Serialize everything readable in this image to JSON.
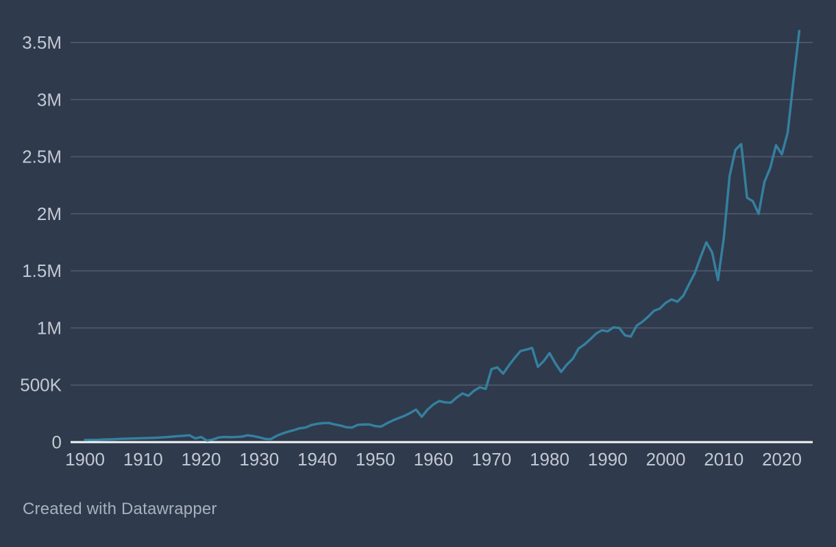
{
  "footer": {
    "attribution": "Created with Datawrapper"
  },
  "colors": {
    "background": "#2f3a4d",
    "line": "#35809e",
    "gridline": "#4c5567",
    "baseline": "#f5f6f7",
    "tick_label": "#c3c9d2",
    "footer_text": "#a9b1bc"
  },
  "chart_data": {
    "type": "line",
    "title": "",
    "xlabel": "",
    "ylabel": "",
    "grid": true,
    "legend": false,
    "xlim": [
      1900,
      2023
    ],
    "ylim": [
      0,
      3500000
    ],
    "x_tick_labels": [
      "1900",
      "1910",
      "1920",
      "1930",
      "1940",
      "1950",
      "1960",
      "1970",
      "1980",
      "1990",
      "2000",
      "2010",
      "2020"
    ],
    "x_tick_values": [
      1900,
      1910,
      1920,
      1930,
      1940,
      1950,
      1960,
      1970,
      1980,
      1990,
      2000,
      2010,
      2020
    ],
    "y_tick_labels": [
      "0",
      "500K",
      "1M",
      "1.5M",
      "2M",
      "2.5M",
      "3M",
      "3.5M"
    ],
    "y_tick_values": [
      0,
      500000,
      1000000,
      1500000,
      2000000,
      2500000,
      3000000,
      3500000
    ],
    "x": [
      1900,
      1901,
      1902,
      1903,
      1904,
      1905,
      1906,
      1907,
      1908,
      1909,
      1910,
      1911,
      1912,
      1913,
      1914,
      1915,
      1916,
      1917,
      1918,
      1919,
      1920,
      1921,
      1922,
      1923,
      1924,
      1925,
      1926,
      1927,
      1928,
      1929,
      1930,
      1931,
      1932,
      1933,
      1934,
      1935,
      1936,
      1937,
      1938,
      1939,
      1940,
      1941,
      1942,
      1943,
      1944,
      1945,
      1946,
      1947,
      1948,
      1949,
      1950,
      1951,
      1952,
      1953,
      1954,
      1955,
      1956,
      1957,
      1958,
      1959,
      1960,
      1961,
      1962,
      1963,
      1964,
      1965,
      1966,
      1967,
      1968,
      1969,
      1970,
      1971,
      1972,
      1973,
      1974,
      1975,
      1976,
      1977,
      1978,
      1979,
      1980,
      1981,
      1982,
      1983,
      1984,
      1985,
      1986,
      1987,
      1988,
      1989,
      1990,
      1991,
      1992,
      1993,
      1994,
      1995,
      1996,
      1997,
      1998,
      1999,
      2000,
      2001,
      2002,
      2003,
      2004,
      2005,
      2006,
      2007,
      2008,
      2009,
      2010,
      2011,
      2012,
      2013,
      2014,
      2015,
      2016,
      2017,
      2018,
      2019,
      2020,
      2021,
      2022,
      2023
    ],
    "values": [
      18000,
      19000,
      20000,
      22000,
      24000,
      26000,
      28000,
      30000,
      31000,
      33000,
      35000,
      36000,
      38000,
      40000,
      44000,
      48000,
      52000,
      56000,
      60000,
      32000,
      45000,
      13000,
      22000,
      40000,
      45000,
      44000,
      45000,
      48000,
      60000,
      53000,
      42000,
      28000,
      26000,
      55000,
      75000,
      92000,
      105000,
      122000,
      128000,
      150000,
      160000,
      166000,
      168000,
      155000,
      145000,
      130000,
      128000,
      152000,
      155000,
      154000,
      140000,
      136000,
      165000,
      190000,
      210000,
      230000,
      255000,
      285000,
      222000,
      285000,
      330000,
      360000,
      348000,
      346000,
      390000,
      426000,
      406000,
      450000,
      480000,
      466000,
      640000,
      655000,
      600000,
      672000,
      738000,
      798000,
      810000,
      825000,
      660000,
      710000,
      780000,
      690000,
      615000,
      680000,
      730000,
      820000,
      855000,
      900000,
      950000,
      980000,
      970000,
      1005000,
      1000000,
      935000,
      925000,
      1020000,
      1055000,
      1100000,
      1150000,
      1170000,
      1220000,
      1250000,
      1230000,
      1280000,
      1380000,
      1480000,
      1620000,
      1750000,
      1660000,
      1420000,
      1790000,
      2330000,
      2560000,
      2610000,
      2140000,
      2110000,
      2000000,
      2280000,
      2400000,
      2600000,
      2520000,
      2710000,
      3170000,
      3600000
    ]
  }
}
